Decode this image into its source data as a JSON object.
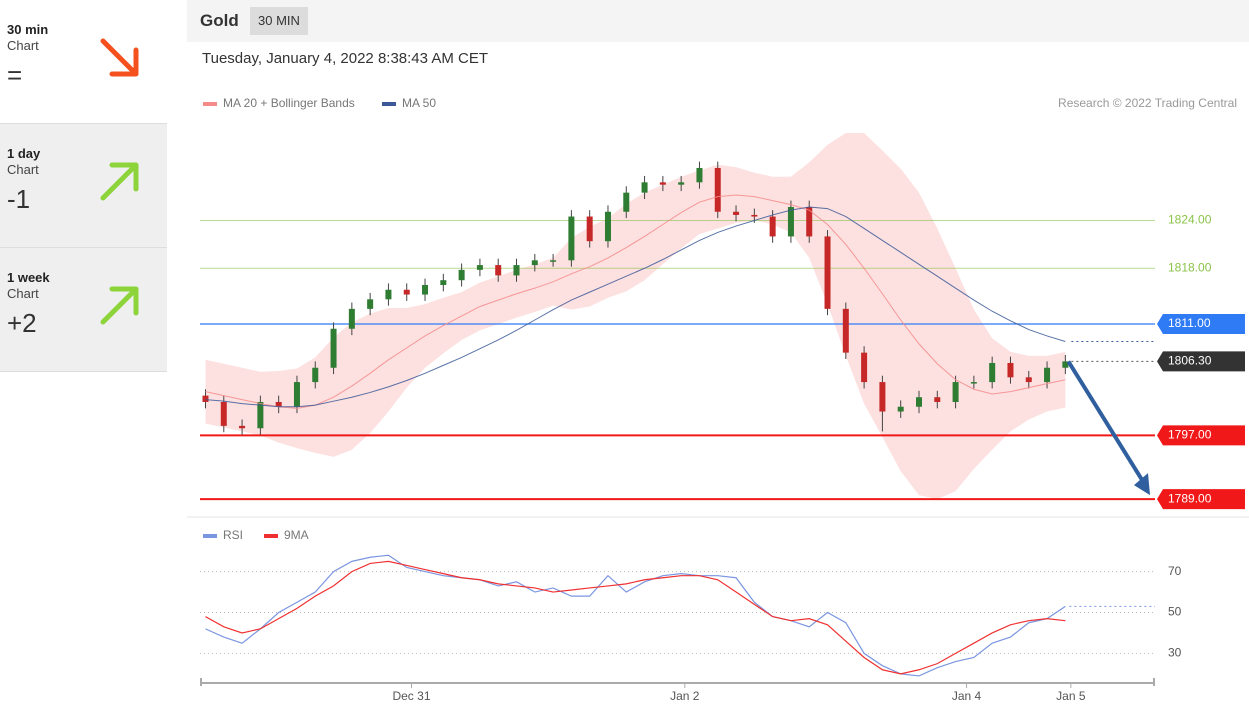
{
  "sidebar": [
    {
      "title": "30 min",
      "subtitle": "Chart",
      "score": "="
    },
    {
      "title": "1 day",
      "subtitle": "Chart",
      "score": "-1"
    },
    {
      "title": "1 week",
      "subtitle": "Chart",
      "score": "+2"
    }
  ],
  "header": {
    "title": "Gold",
    "badge": "30 MIN"
  },
  "timestamp": "Tuesday, January 4, 2022 8:38:43 AM CET",
  "chart_data": [
    {
      "type": "candlestick",
      "note": "Research © 2022 Trading Central",
      "xlim": [
        -0.3,
        51.9
      ],
      "ylim": [
        1787,
        1836
      ],
      "up_color": "#2e7d32",
      "down_color": "#c62828",
      "open": [
        1802.0,
        1801.2,
        1798.2,
        1797.9,
        1801.2,
        1800.6,
        1803.7,
        1805.5,
        1810.4,
        1812.9,
        1814.1,
        1815.3,
        1814.7,
        1815.9,
        1816.5,
        1817.8,
        1818.4,
        1817.1,
        1818.4,
        1819.0,
        1819.0,
        1824.5,
        1821.4,
        1825.1,
        1827.5,
        1828.8,
        1828.5,
        1828.8,
        1830.6,
        1825.1,
        1824.7,
        1824.5,
        1822.0,
        1825.7,
        1822.0,
        1812.9,
        1807.4,
        1803.7,
        1800.0,
        1800.6,
        1801.8,
        1801.2,
        1803.7,
        1803.7,
        1806.1,
        1804.3,
        1803.7,
        1805.5
      ],
      "high": [
        1802.8,
        1802.0,
        1799.0,
        1802.0,
        1802.0,
        1804.5,
        1806.3,
        1811.2,
        1813.7,
        1814.9,
        1816.1,
        1816.1,
        1816.7,
        1817.3,
        1818.6,
        1819.2,
        1819.2,
        1819.2,
        1819.8,
        1819.8,
        1825.3,
        1825.3,
        1825.9,
        1828.3,
        1829.6,
        1829.6,
        1829.6,
        1831.4,
        1831.4,
        1825.9,
        1825.5,
        1825.3,
        1826.5,
        1826.5,
        1822.8,
        1813.7,
        1808.2,
        1804.5,
        1801.4,
        1802.6,
        1802.6,
        1804.5,
        1804.5,
        1806.9,
        1806.9,
        1805.1,
        1806.3,
        1807.1
      ],
      "low": [
        1800.4,
        1797.4,
        1797.1,
        1797.1,
        1799.8,
        1799.8,
        1802.9,
        1804.7,
        1809.6,
        1812.1,
        1813.3,
        1813.9,
        1813.9,
        1815.1,
        1815.7,
        1817.0,
        1816.3,
        1816.3,
        1817.6,
        1818.2,
        1818.2,
        1820.6,
        1820.6,
        1824.3,
        1826.7,
        1827.7,
        1827.7,
        1828.0,
        1824.3,
        1823.9,
        1823.7,
        1821.2,
        1821.2,
        1821.2,
        1812.1,
        1806.6,
        1802.9,
        1797.5,
        1799.2,
        1799.8,
        1800.4,
        1800.4,
        1802.9,
        1802.9,
        1803.5,
        1802.9,
        1802.9,
        1804.7
      ],
      "close": [
        1801.2,
        1798.2,
        1797.9,
        1801.2,
        1800.6,
        1803.7,
        1805.5,
        1810.4,
        1812.9,
        1814.1,
        1815.3,
        1814.7,
        1815.9,
        1816.5,
        1817.8,
        1818.4,
        1817.1,
        1818.4,
        1819.0,
        1819.0,
        1824.5,
        1821.4,
        1825.1,
        1827.5,
        1828.8,
        1828.5,
        1828.8,
        1830.6,
        1825.1,
        1824.7,
        1824.5,
        1822.0,
        1825.7,
        1822.0,
        1812.9,
        1807.4,
        1803.7,
        1800.0,
        1800.6,
        1801.8,
        1801.2,
        1803.7,
        1803.7,
        1806.1,
        1804.3,
        1803.7,
        1805.5,
        1806.3
      ],
      "series": [
        {
          "name": "MA 20 + Bollinger Bands",
          "color": "#f48a8a",
          "band_color": "#fde0e0",
          "values": [
            1802.5,
            1802.0,
            1801.5,
            1801.0,
            1800.6,
            1800.4,
            1800.8,
            1801.8,
            1803.2,
            1804.8,
            1806.5,
            1808.0,
            1809.5,
            1810.8,
            1812.0,
            1813.2,
            1814.0,
            1814.8,
            1815.5,
            1816.3,
            1817.3,
            1818.2,
            1819.3,
            1820.6,
            1822.0,
            1823.5,
            1825.0,
            1826.3,
            1827.0,
            1827.2,
            1827.0,
            1826.5,
            1826.0,
            1825.3,
            1823.5,
            1821.0,
            1818.0,
            1814.8,
            1811.5,
            1808.5,
            1806.0,
            1804.0,
            1802.8,
            1802.2,
            1802.5,
            1803.0,
            1803.5,
            1804.0
          ],
          "upper": [
            1806.5,
            1806.0,
            1805.5,
            1805.0,
            1805.1,
            1805.4,
            1806.8,
            1809.3,
            1811.2,
            1812.3,
            1813.0,
            1813.0,
            1813.5,
            1814.3,
            1815.0,
            1816.2,
            1817.0,
            1817.8,
            1818.5,
            1819.3,
            1821.8,
            1823.2,
            1824.3,
            1826.1,
            1827.5,
            1828.5,
            1829.5,
            1830.3,
            1831.0,
            1830.7,
            1830.0,
            1829.5,
            1829.5,
            1831.3,
            1833.5,
            1835.0,
            1835.0,
            1832.8,
            1830.5,
            1827.5,
            1823.0,
            1818.0,
            1812.8,
            1809.2,
            1807.5,
            1807.0,
            1807.0,
            1807.5
          ],
          "lower": [
            1798.5,
            1798.0,
            1797.5,
            1797.0,
            1796.1,
            1795.4,
            1794.8,
            1794.3,
            1795.2,
            1797.3,
            1800.0,
            1803.0,
            1805.5,
            1807.3,
            1809.0,
            1810.2,
            1811.0,
            1811.8,
            1812.5,
            1813.3,
            1812.8,
            1813.2,
            1814.3,
            1815.1,
            1816.5,
            1818.5,
            1820.5,
            1822.3,
            1823.0,
            1823.7,
            1824.0,
            1823.5,
            1822.5,
            1819.3,
            1813.5,
            1807.0,
            1801.0,
            1796.8,
            1792.5,
            1789.5,
            1789.0,
            1790.0,
            1792.8,
            1795.2,
            1797.5,
            1799.0,
            1800.0,
            1800.5
          ]
        },
        {
          "name": "MA 50",
          "color": "#3b5998",
          "values": [
            1801.5,
            1801.3,
            1801.0,
            1800.8,
            1800.6,
            1800.6,
            1800.8,
            1801.3,
            1801.8,
            1802.4,
            1803.1,
            1803.9,
            1804.8,
            1805.8,
            1806.8,
            1807.9,
            1809.0,
            1810.2,
            1811.5,
            1812.8,
            1814.0,
            1815.0,
            1816.0,
            1817.0,
            1818.0,
            1819.1,
            1820.3,
            1821.5,
            1822.5,
            1823.3,
            1824.0,
            1824.7,
            1825.3,
            1825.7,
            1825.5,
            1824.5,
            1823.0,
            1821.5,
            1820.0,
            1818.5,
            1817.0,
            1815.5,
            1814.0,
            1812.6,
            1811.4,
            1810.3,
            1809.5,
            1808.8
          ]
        }
      ],
      "levels": [
        {
          "value": 1824,
          "label": "1824.00",
          "color": "#8bc34a",
          "style": "text"
        },
        {
          "value": 1818,
          "label": "1818.00",
          "color": "#8bc34a",
          "style": "text"
        },
        {
          "value": 1811,
          "label": "1811.00",
          "color": "#2f7bf5",
          "style": "box"
        },
        {
          "value": 1806.3,
          "label": "1806.30",
          "color": "#333333",
          "style": "current"
        },
        {
          "value": 1797,
          "label": "1797.00",
          "color": "#f01818",
          "style": "box"
        },
        {
          "value": 1789,
          "label": "1789.00",
          "color": "#f01818",
          "style": "box"
        }
      ]
    },
    {
      "type": "line",
      "xlim": [
        -0.3,
        51.9
      ],
      "ylim": [
        17,
        83
      ],
      "yticks": [
        30,
        50,
        70
      ],
      "xticks": [
        {
          "value": 11.26,
          "label": "Dec 31"
        },
        {
          "value": 26.2,
          "label": "Jan 2"
        },
        {
          "value": 41.6,
          "label": "Jan 4"
        },
        {
          "value": 47.3,
          "label": "Jan 5"
        }
      ],
      "series": [
        {
          "name": "RSI",
          "color": "#7b96e0",
          "values": [
            42,
            38,
            35,
            42,
            50,
            55,
            60,
            70,
            75,
            77,
            78,
            72,
            70,
            68,
            67,
            66,
            63,
            65,
            60,
            62,
            58,
            58,
            68,
            60,
            65,
            68,
            69,
            68,
            68,
            67,
            55,
            48,
            46,
            43,
            50,
            45,
            30,
            24,
            20,
            19,
            23,
            26,
            28,
            35,
            38,
            45,
            47,
            53
          ]
        },
        {
          "name": "9MA",
          "color": "#f03030",
          "values": [
            48,
            43,
            40,
            42,
            47,
            52,
            58,
            63,
            70,
            74,
            75,
            73,
            71,
            69,
            67,
            66,
            64,
            63,
            62,
            60,
            61,
            62,
            63,
            64,
            66,
            67,
            68,
            68,
            66,
            60,
            54,
            48,
            46,
            47,
            44,
            36,
            28,
            22,
            20,
            22,
            25,
            30,
            35,
            40,
            44,
            46,
            47,
            46
          ]
        }
      ]
    }
  ]
}
